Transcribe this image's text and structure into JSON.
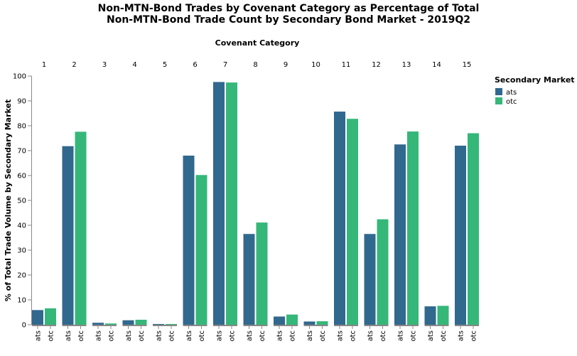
{
  "chart_data": {
    "type": "bar",
    "title": [
      "Non-MTN-Bond Trades by Covenant Category as Percentage of Total",
      "Non-MTN-Bond Trade Count by Secondary Bond Market - 2019Q2"
    ],
    "column_header": "Covenant Category",
    "ylabel": "% of Total Trade Volume by Secondary Market",
    "ylim": [
      0,
      100
    ],
    "yticks": [
      0,
      10,
      20,
      30,
      40,
      50,
      60,
      70,
      80,
      90,
      100
    ],
    "categories": [
      "1",
      "2",
      "3",
      "4",
      "5",
      "6",
      "7",
      "8",
      "9",
      "10",
      "11",
      "12",
      "13",
      "14",
      "15"
    ],
    "sub_categories": [
      "ats",
      "otc"
    ],
    "series": [
      {
        "name": "ats",
        "color": "#31688e",
        "values": [
          5.9,
          71.8,
          0.8,
          1.8,
          0.3,
          68.0,
          97.6,
          36.5,
          3.3,
          1.3,
          85.7,
          36.5,
          72.5,
          7.4,
          72.0
        ]
      },
      {
        "name": "otc",
        "color": "#35b779",
        "values": [
          6.6,
          77.6,
          0.5,
          2.0,
          0.3,
          60.2,
          97.4,
          41.1,
          4.1,
          1.4,
          82.8,
          42.4,
          77.7,
          7.6,
          77.0
        ]
      }
    ],
    "legend": {
      "title": "Secondary Market",
      "position": "right"
    },
    "grid": false
  }
}
